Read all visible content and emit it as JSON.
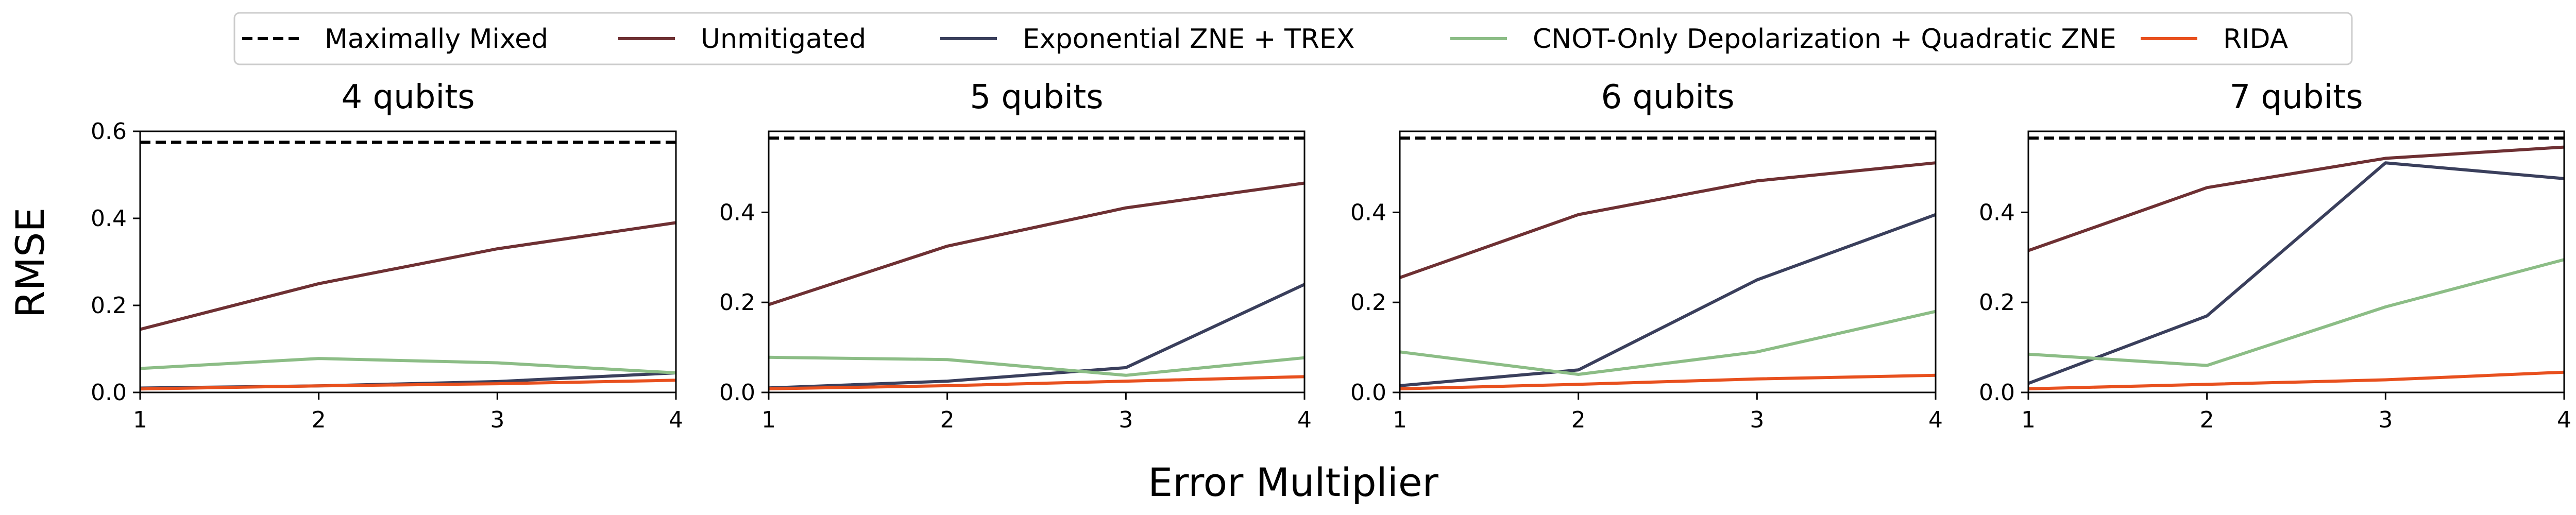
{
  "chart_data": {
    "type": "line",
    "xlabel": "Error Multiplier",
    "ylabel": "RMSE",
    "x": [
      1,
      2,
      3,
      4
    ],
    "xticks": [
      "1",
      "2",
      "3",
      "4"
    ],
    "legend_placement": "top-center",
    "grid": false,
    "series_styles": [
      {
        "name": "Maximally Mixed",
        "color": "#000000",
        "dash": true
      },
      {
        "name": "Unmitigated",
        "color": "#6e3033",
        "dash": false
      },
      {
        "name": "Exponential ZNE + TREX",
        "color": "#3a3f5c",
        "dash": false
      },
      {
        "name": "CNOT-Only Depolarization + Quadratic ZNE",
        "color": "#8cbd86",
        "dash": false
      },
      {
        "name": "RIDA",
        "color": "#e8501e",
        "dash": false
      }
    ],
    "panels": [
      {
        "title": "4 qubits",
        "ylim": [
          0,
          0.6
        ],
        "yticks": [
          0.0,
          0.2,
          0.4,
          0.6
        ],
        "ytick_labels": [
          "0.0",
          "0.2",
          "0.4",
          "0.6"
        ],
        "series": [
          {
            "name": "Maximally Mixed",
            "values": [
              0.575,
              0.575,
              0.575,
              0.575
            ]
          },
          {
            "name": "Unmitigated",
            "values": [
              0.145,
              0.25,
              0.33,
              0.39
            ]
          },
          {
            "name": "Exponential ZNE + TREX",
            "values": [
              0.01,
              0.015,
              0.025,
              0.045
            ]
          },
          {
            "name": "CNOT-Only Depolarization + Quadratic ZNE",
            "values": [
              0.055,
              0.078,
              0.068,
              0.045
            ]
          },
          {
            "name": "RIDA",
            "values": [
              0.008,
              0.015,
              0.02,
              0.028
            ]
          }
        ]
      },
      {
        "title": "5 qubits",
        "ylim": [
          0,
          0.58
        ],
        "yticks": [
          0.0,
          0.2,
          0.4
        ],
        "ytick_labels": [
          "0.0",
          "0.2",
          "0.4"
        ],
        "series": [
          {
            "name": "Maximally Mixed",
            "values": [
              0.565,
              0.565,
              0.565,
              0.565
            ]
          },
          {
            "name": "Unmitigated",
            "values": [
              0.195,
              0.325,
              0.41,
              0.465
            ]
          },
          {
            "name": "Exponential ZNE + TREX",
            "values": [
              0.01,
              0.025,
              0.055,
              0.24
            ]
          },
          {
            "name": "CNOT-Only Depolarization + Quadratic ZNE",
            "values": [
              0.078,
              0.073,
              0.038,
              0.077
            ]
          },
          {
            "name": "RIDA",
            "values": [
              0.008,
              0.015,
              0.025,
              0.035
            ]
          }
        ]
      },
      {
        "title": "6 qubits",
        "ylim": [
          0,
          0.58
        ],
        "yticks": [
          0.0,
          0.2,
          0.4
        ],
        "ytick_labels": [
          "0.0",
          "0.2",
          "0.4"
        ],
        "series": [
          {
            "name": "Maximally Mixed",
            "values": [
              0.565,
              0.565,
              0.565,
              0.565
            ]
          },
          {
            "name": "Unmitigated",
            "values": [
              0.255,
              0.395,
              0.47,
              0.51
            ]
          },
          {
            "name": "Exponential ZNE + TREX",
            "values": [
              0.015,
              0.05,
              0.25,
              0.395
            ]
          },
          {
            "name": "CNOT-Only Depolarization + Quadratic ZNE",
            "values": [
              0.09,
              0.04,
              0.09,
              0.18
            ]
          },
          {
            "name": "RIDA",
            "values": [
              0.008,
              0.018,
              0.03,
              0.038
            ]
          }
        ]
      },
      {
        "title": "7 qubits",
        "ylim": [
          0,
          0.58
        ],
        "yticks": [
          0.0,
          0.2,
          0.4
        ],
        "ytick_labels": [
          "0.0",
          "0.2",
          "0.4"
        ],
        "series": [
          {
            "name": "Maximally Mixed",
            "values": [
              0.565,
              0.565,
              0.565,
              0.565
            ]
          },
          {
            "name": "Unmitigated",
            "values": [
              0.315,
              0.455,
              0.52,
              0.545
            ]
          },
          {
            "name": "Exponential ZNE + TREX",
            "values": [
              0.02,
              0.17,
              0.51,
              0.475
            ]
          },
          {
            "name": "CNOT-Only Depolarization + Quadratic ZNE",
            "values": [
              0.085,
              0.06,
              0.19,
              0.295
            ]
          },
          {
            "name": "RIDA",
            "values": [
              0.008,
              0.018,
              0.028,
              0.045
            ]
          }
        ]
      }
    ]
  }
}
